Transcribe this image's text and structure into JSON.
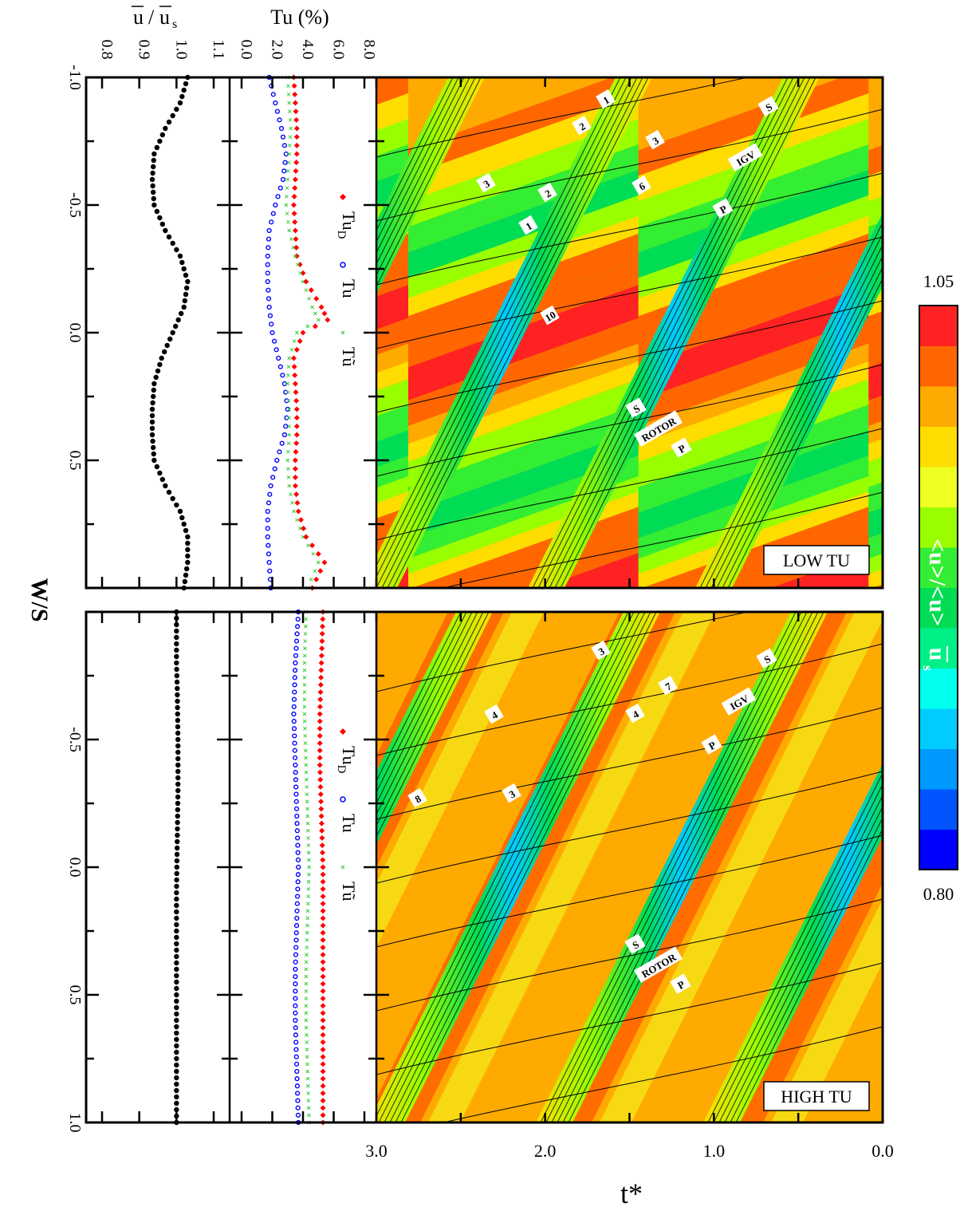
{
  "chart_data": {
    "type": "heatmap",
    "shared": {
      "axis_label_ws": "W/S",
      "axis_label_t": "t*",
      "t_ticks": [
        "3.0",
        "2.0",
        "1.0",
        "0.0"
      ],
      "t_range": [
        3.0,
        0.0
      ],
      "ws_range": [
        -1.0,
        1.0
      ]
    },
    "colorbar": {
      "label": "<u>/<u>",
      "label_overbar": "u",
      "label_sub": "s",
      "max_label": "1.05",
      "min_label": "0.80",
      "range": [
        0.8,
        1.05
      ],
      "colors": [
        "#0000ff",
        "#0055ff",
        "#0099ff",
        "#00ccff",
        "#00ffee",
        "#00f088",
        "#00dd55",
        "#33ee33",
        "#99ff00",
        "#eeff22",
        "#ffdd00",
        "#ffaa00",
        "#ff6600",
        "#ff2222"
      ]
    },
    "panels": [
      {
        "id": "low",
        "panel_label": "LOW TU",
        "mean_velocity": {
          "axis_title_main": "/",
          "axis_title_u1": "u",
          "axis_title_u2": "u",
          "axis_title_sub": "s",
          "ticks": [
            "0.8",
            "0.9",
            "1.0",
            "1.1"
          ],
          "range": [
            0.8,
            1.1
          ],
          "ws_ticks": [
            "-1.0",
            "-0.5",
            "0.0",
            "0.5"
          ],
          "profile": [
            [
              -1.0,
              1.03
            ],
            [
              -0.9,
              1.01
            ],
            [
              -0.8,
              0.97
            ],
            [
              -0.7,
              0.94
            ],
            [
              -0.6,
              0.935
            ],
            [
              -0.5,
              0.94
            ],
            [
              -0.4,
              0.97
            ],
            [
              -0.3,
              1.01
            ],
            [
              -0.2,
              1.03
            ],
            [
              -0.1,
              1.02
            ],
            [
              0.0,
              0.99
            ],
            [
              0.1,
              0.96
            ],
            [
              0.2,
              0.94
            ],
            [
              0.3,
              0.935
            ],
            [
              0.4,
              0.935
            ],
            [
              0.5,
              0.94
            ],
            [
              0.6,
              0.97
            ],
            [
              0.7,
              1.01
            ],
            [
              0.8,
              1.03
            ],
            [
              0.9,
              1.03
            ],
            [
              1.0,
              1.02
            ]
          ]
        },
        "turbulence": {
          "axis_title": "Tu (%)",
          "ticks": [
            "0.0",
            "2.0",
            "4.0",
            "6.0",
            "8.0"
          ],
          "range": [
            0.0,
            8.0
          ],
          "legend": [
            {
              "name": "Tu",
              "sub": "D",
              "symbol": "diamond",
              "color": "#ff0000"
            },
            {
              "name": "Tu",
              "sub": "",
              "symbol": "circle",
              "color": "#0000ff"
            },
            {
              "name": "Tũ",
              "sub": "",
              "symbol": "cross",
              "color": "#33cc33"
            }
          ],
          "series": [
            {
              "name": "TuD",
              "color": "#ff0000",
              "points": [
                [
                  -1.0,
                  3.4
                ],
                [
                  -0.9,
                  3.5
                ],
                [
                  -0.8,
                  3.6
                ],
                [
                  -0.7,
                  3.6
                ],
                [
                  -0.6,
                  3.5
                ],
                [
                  -0.5,
                  3.4
                ],
                [
                  -0.4,
                  3.5
                ],
                [
                  -0.3,
                  3.6
                ],
                [
                  -0.2,
                  4.2
                ],
                [
                  -0.1,
                  5.2
                ],
                [
                  -0.05,
                  5.6
                ],
                [
                  0.0,
                  4.0
                ],
                [
                  0.1,
                  3.4
                ],
                [
                  0.2,
                  3.5
                ],
                [
                  0.3,
                  3.6
                ],
                [
                  0.4,
                  3.6
                ],
                [
                  0.5,
                  3.5
                ],
                [
                  0.6,
                  3.5
                ],
                [
                  0.7,
                  3.7
                ],
                [
                  0.8,
                  4.2
                ],
                [
                  0.9,
                  5.4
                ],
                [
                  1.0,
                  4.6
                ]
              ]
            },
            {
              "name": "Tu",
              "color": "#0000ff",
              "points": [
                [
                  -1.0,
                  1.8
                ],
                [
                  -0.9,
                  2.2
                ],
                [
                  -0.8,
                  2.6
                ],
                [
                  -0.7,
                  2.9
                ],
                [
                  -0.6,
                  2.7
                ],
                [
                  -0.5,
                  2.2
                ],
                [
                  -0.4,
                  1.8
                ],
                [
                  -0.3,
                  1.7
                ],
                [
                  -0.2,
                  1.7
                ],
                [
                  -0.1,
                  1.8
                ],
                [
                  0.0,
                  2.0
                ],
                [
                  0.1,
                  2.4
                ],
                [
                  0.2,
                  2.8
                ],
                [
                  0.3,
                  3.0
                ],
                [
                  0.4,
                  2.8
                ],
                [
                  0.5,
                  2.3
                ],
                [
                  0.6,
                  1.9
                ],
                [
                  0.7,
                  1.7
                ],
                [
                  0.8,
                  1.7
                ],
                [
                  0.9,
                  1.8
                ],
                [
                  1.0,
                  1.9
                ]
              ]
            },
            {
              "name": "Tũ",
              "color": "#33cc33",
              "points": [
                [
                  -1.0,
                  3.0
                ],
                [
                  -0.9,
                  3.1
                ],
                [
                  -0.8,
                  3.2
                ],
                [
                  -0.7,
                  3.1
                ],
                [
                  -0.6,
                  3.0
                ],
                [
                  -0.5,
                  2.9
                ],
                [
                  -0.4,
                  3.1
                ],
                [
                  -0.3,
                  3.5
                ],
                [
                  -0.2,
                  4.0
                ],
                [
                  -0.1,
                  4.6
                ],
                [
                  -0.05,
                  5.0
                ],
                [
                  0.0,
                  3.6
                ],
                [
                  0.1,
                  3.1
                ],
                [
                  0.2,
                  3.0
                ],
                [
                  0.3,
                  3.1
                ],
                [
                  0.4,
                  3.1
                ],
                [
                  0.5,
                  3.0
                ],
                [
                  0.6,
                  3.1
                ],
                [
                  0.7,
                  3.4
                ],
                [
                  0.8,
                  4.0
                ],
                [
                  0.9,
                  5.0
                ],
                [
                  1.0,
                  4.3
                ]
              ]
            }
          ]
        },
        "contour": {
          "line_labels": [
            "1",
            "2",
            "3",
            "3",
            "6",
            "2",
            "1",
            "10"
          ],
          "feature_labels": [
            "S",
            "IGV",
            "P",
            "S",
            "ROTOR",
            "P"
          ],
          "rotor_wake_t_at_ws_minus1": [
            2.4,
            1.0,
            -0.4,
            3.8
          ],
          "rotor_wake_slope": 0.7
        }
      },
      {
        "id": "high",
        "panel_label": "HIGH TU",
        "mean_velocity": {
          "ticks": [],
          "range": [
            0.8,
            1.1
          ],
          "ws_ticks": [
            "-0.5",
            "0.0",
            "0.5",
            "1.0"
          ],
          "profile": [
            [
              -1.0,
              1.0
            ],
            [
              -0.9,
              1.0
            ],
            [
              -0.8,
              1.0
            ],
            [
              -0.7,
              1.002
            ],
            [
              -0.6,
              1.003
            ],
            [
              -0.5,
              1.004
            ],
            [
              -0.4,
              1.004
            ],
            [
              -0.3,
              1.004
            ],
            [
              -0.2,
              1.003
            ],
            [
              -0.1,
              1.002
            ],
            [
              0.0,
              1.001
            ],
            [
              0.1,
              1.0
            ],
            [
              0.2,
              1.0
            ],
            [
              0.3,
              1.0
            ],
            [
              0.4,
              1.0
            ],
            [
              0.5,
              1.0
            ],
            [
              0.6,
              1.0
            ],
            [
              0.7,
              1.0
            ],
            [
              0.8,
              1.0
            ],
            [
              0.9,
              1.0
            ],
            [
              1.0,
              1.0
            ]
          ]
        },
        "turbulence": {
          "legend": [
            {
              "name": "Tu",
              "sub": "D",
              "symbol": "diamond",
              "color": "#ff0000"
            },
            {
              "name": "Tu",
              "sub": "",
              "symbol": "circle",
              "color": "#0000ff"
            },
            {
              "name": "Tũ",
              "sub": "",
              "symbol": "cross",
              "color": "#33cc33"
            }
          ],
          "series": [
            {
              "name": "TuD",
              "color": "#ff0000",
              "points": [
                [
                  -1.0,
                  5.3
                ],
                [
                  -0.8,
                  5.2
                ],
                [
                  -0.6,
                  5.1
                ],
                [
                  -0.4,
                  5.1
                ],
                [
                  -0.2,
                  5.2
                ],
                [
                  0.0,
                  5.3
                ],
                [
                  0.2,
                  5.3
                ],
                [
                  0.4,
                  5.3
                ],
                [
                  0.6,
                  5.3
                ],
                [
                  0.8,
                  5.3
                ],
                [
                  1.0,
                  5.3
                ]
              ]
            },
            {
              "name": "Tu",
              "color": "#0000ff",
              "points": [
                [
                  -1.0,
                  3.7
                ],
                [
                  -0.8,
                  3.5
                ],
                [
                  -0.6,
                  3.4
                ],
                [
                  -0.4,
                  3.5
                ],
                [
                  -0.2,
                  3.6
                ],
                [
                  0.0,
                  3.7
                ],
                [
                  0.2,
                  3.6
                ],
                [
                  0.4,
                  3.5
                ],
                [
                  0.6,
                  3.5
                ],
                [
                  0.8,
                  3.6
                ],
                [
                  1.0,
                  3.7
                ]
              ]
            },
            {
              "name": "Tũ",
              "color": "#33cc33",
              "points": [
                [
                  -1.0,
                  4.2
                ],
                [
                  -0.8,
                  4.1
                ],
                [
                  -0.6,
                  4.1
                ],
                [
                  -0.4,
                  4.2
                ],
                [
                  -0.2,
                  4.3
                ],
                [
                  0.0,
                  4.4
                ],
                [
                  0.2,
                  4.3
                ],
                [
                  0.4,
                  4.2
                ],
                [
                  0.6,
                  4.2
                ],
                [
                  0.8,
                  4.3
                ],
                [
                  1.0,
                  4.4
                ]
              ]
            }
          ]
        },
        "contour": {
          "line_labels": [
            "3",
            "7",
            "4",
            "4",
            "3",
            "8"
          ],
          "feature_labels": [
            "S",
            "IGV",
            "P",
            "S",
            "ROTOR",
            "P"
          ],
          "rotor_wake_t_at_ws_minus1": [
            2.35,
            0.95,
            -0.45,
            3.75
          ],
          "rotor_wake_slope": 0.7
        }
      }
    ]
  }
}
